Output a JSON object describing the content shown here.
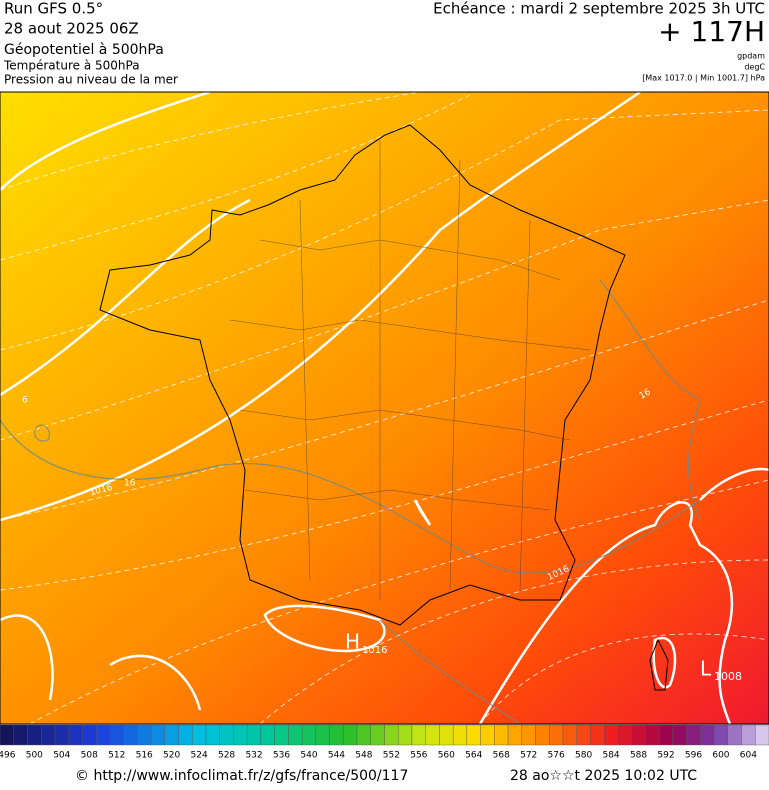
{
  "header": {
    "run": "Run GFS 0.5°",
    "date": "28 aout 2025 06Z",
    "field1": "Géopotentiel à 500hPa",
    "field2": "Température à 500hPa",
    "field3": "Pression au niveau de la mer",
    "echeance": "Echéance : mardi 2 septembre 2025 3h UTC",
    "lead": "+ 117H",
    "unit1": "gpdam",
    "unit2": "degC",
    "range": "[Max 1017.0 | Min 1001.7] hPa"
  },
  "map": {
    "high": {
      "letter": "H",
      "value": "1016"
    },
    "low": {
      "letter": "L",
      "value": "1008"
    },
    "contour_labels": [
      "1016",
      "16",
      "16",
      "1016",
      "6"
    ]
  },
  "colorbar": {
    "labels": [
      496,
      500,
      504,
      508,
      512,
      516,
      520,
      524,
      528,
      532,
      536,
      540,
      544,
      548,
      552,
      556,
      560,
      564,
      568,
      572,
      576,
      580,
      584,
      588,
      592,
      596,
      600,
      604
    ]
  },
  "footer": {
    "url": "© http://www.infoclimat.fr/z/gfs/france/500/117",
    "time": "28 ao☆☆t 2025 10:02 UTC"
  }
}
